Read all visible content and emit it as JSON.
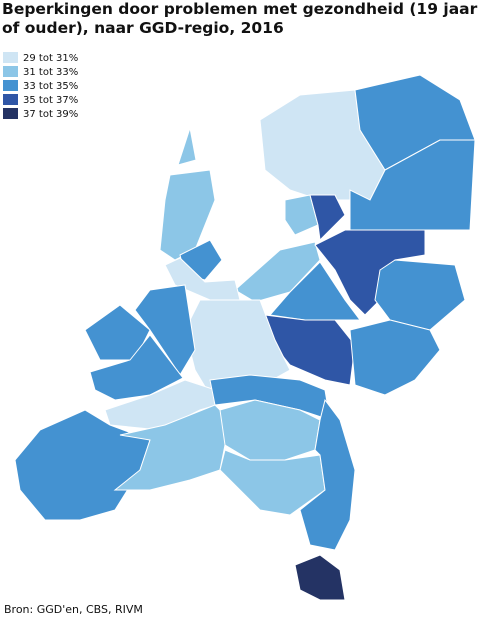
{
  "header": {
    "title": "Beperkingen door problemen met gezondheid (19 jaar of ouder), naar GGD-regio, 2016"
  },
  "legend": {
    "items": [
      {
        "label": "29 tot 31%",
        "color": "#cfe5f4"
      },
      {
        "label": "31 tot 33%",
        "color": "#8cc6e7"
      },
      {
        "label": "33 tot 35%",
        "color": "#4492d1"
      },
      {
        "label": "35 tot 37%",
        "color": "#2f56a6"
      },
      {
        "label": "37 tot 39%",
        "color": "#243364"
      }
    ]
  },
  "footer": {
    "source": "Bron: GGD'en, CBS, RIVM"
  }
}
